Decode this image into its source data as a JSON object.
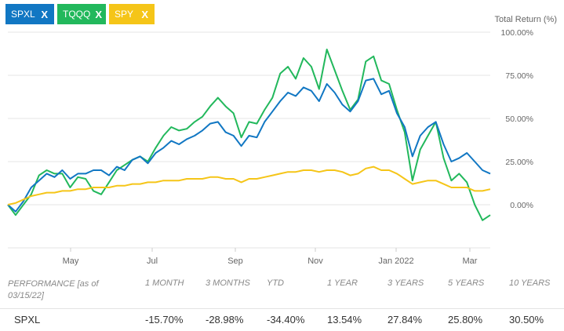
{
  "chips": [
    {
      "label": "SPXL",
      "close": "X",
      "color": "#1177c3"
    },
    {
      "label": "TQQQ",
      "close": "X",
      "color": "#22b85c"
    },
    {
      "label": "SPY",
      "close": "X",
      "color": "#f5c518"
    }
  ],
  "chart_data": {
    "type": "line",
    "ylabel": "Total Return (%)",
    "y_ticks": [
      "100.00%",
      "75.00%",
      "50.00%",
      "25.00%",
      "0.00%"
    ],
    "ylim": [
      -25,
      100
    ],
    "x_ticks": [
      "May",
      "Jul",
      "Sep",
      "Nov",
      "Jan 2022",
      "Mar"
    ],
    "grid": true,
    "series": [
      {
        "name": "SPXL",
        "color": "#1177c3",
        "values": [
          0,
          -4,
          2,
          10,
          14,
          18,
          16,
          20,
          15,
          18,
          18,
          20,
          20,
          17,
          22,
          20,
          26,
          28,
          24,
          30,
          33,
          37,
          35,
          38,
          40,
          43,
          47,
          48,
          42,
          40,
          34,
          40,
          39,
          48,
          54,
          60,
          65,
          63,
          68,
          66,
          60,
          70,
          65,
          58,
          54,
          60,
          72,
          73,
          64,
          66,
          53,
          45,
          28,
          40,
          45,
          48,
          35,
          25,
          27,
          30,
          25,
          20,
          18
        ]
      },
      {
        "name": "TQQQ",
        "color": "#22b85c",
        "values": [
          0,
          -6,
          0,
          6,
          17,
          20,
          18,
          18,
          10,
          16,
          15,
          8,
          6,
          13,
          20,
          23,
          26,
          28,
          25,
          33,
          40,
          45,
          43,
          44,
          48,
          51,
          57,
          62,
          57,
          53,
          39,
          48,
          47,
          55,
          62,
          76,
          80,
          73,
          85,
          80,
          67,
          90,
          78,
          66,
          55,
          61,
          83,
          86,
          72,
          70,
          55,
          42,
          14,
          32,
          40,
          48,
          27,
          14,
          18,
          13,
          0,
          -9,
          -6
        ]
      },
      {
        "name": "SPY",
        "color": "#f5c518",
        "values": [
          0,
          1,
          3,
          5,
          6,
          7,
          7,
          8,
          8,
          9,
          9,
          10,
          10,
          10,
          11,
          11,
          12,
          12,
          13,
          13,
          14,
          14,
          14,
          15,
          15,
          15,
          16,
          16,
          15,
          15,
          13,
          15,
          15,
          16,
          17,
          18,
          19,
          19,
          20,
          20,
          19,
          20,
          20,
          19,
          17,
          18,
          21,
          22,
          20,
          20,
          18,
          15,
          12,
          13,
          14,
          14,
          12,
          10,
          10,
          10,
          8,
          8,
          9
        ]
      }
    ]
  },
  "performance": {
    "header_label": "PERFORMANCE [as of 03/15/22]",
    "columns": [
      "1 MONTH",
      "3 MONTHS",
      "YTD",
      "1 YEAR",
      "3 YEARS",
      "5 YEARS",
      "10 YEARS"
    ],
    "rows": [
      {
        "name": "SPXL",
        "values": [
          "-15.70%",
          "-28.98%",
          "-34.40%",
          "13.54%",
          "27.84%",
          "25.80%",
          "30.50%"
        ]
      }
    ]
  }
}
